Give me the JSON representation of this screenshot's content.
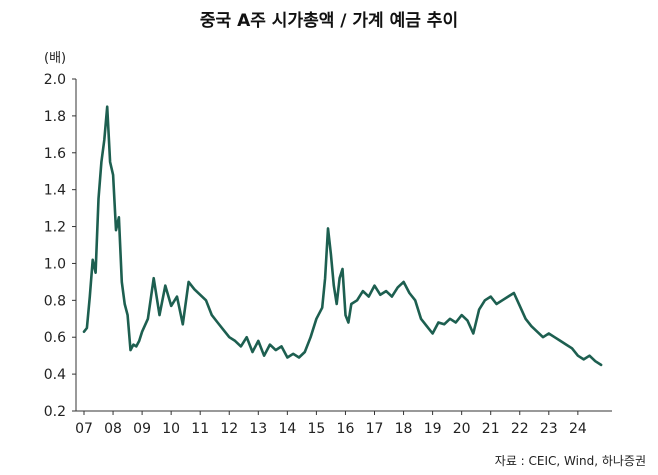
{
  "header": {
    "title": "중국 A주 시가총액 / 가계 예금 추이",
    "unit": "(배)"
  },
  "footer": {
    "source": "자료 : CEIC, Wind, 하나증권"
  },
  "chart_data": {
    "type": "line",
    "title": "중국 A주 시가총액 / 가계 예금 추이",
    "ylabel": "(배)",
    "xlabel": "",
    "ylim": [
      0.2,
      2.0
    ],
    "xlim": [
      2007.0,
      2024.9
    ],
    "yticks": [
      "2.0",
      "1.8",
      "1.6",
      "1.4",
      "1.2",
      "1.0",
      "0.8",
      "0.6",
      "0.4",
      "0.2"
    ],
    "xticks": [
      "07",
      "08",
      "09",
      "10",
      "11",
      "12",
      "13",
      "14",
      "15",
      "16",
      "17",
      "18",
      "19",
      "20",
      "21",
      "22",
      "23",
      "24"
    ],
    "grid": false,
    "line_color": "#1d5f50",
    "series": [
      {
        "x": [
          2007.0,
          2007.1,
          2007.2,
          2007.3,
          2007.4,
          2007.5,
          2007.6,
          2007.7,
          2007.8,
          2007.9,
          2008.0,
          2008.1,
          2008.2,
          2008.3,
          2008.4,
          2008.5,
          2008.6,
          2008.7,
          2008.8,
          2008.9,
          2009.0,
          2009.2,
          2009.4,
          2009.6,
          2009.8,
          2010.0,
          2010.2,
          2010.4,
          2010.6,
          2010.8,
          2011.0,
          2011.2,
          2011.4,
          2011.6,
          2011.8,
          2012.0,
          2012.2,
          2012.4,
          2012.6,
          2012.8,
          2013.0,
          2013.2,
          2013.4,
          2013.6,
          2013.8,
          2014.0,
          2014.2,
          2014.4,
          2014.6,
          2014.8,
          2015.0,
          2015.2,
          2015.3,
          2015.4,
          2015.5,
          2015.6,
          2015.7,
          2015.8,
          2015.9,
          2016.0,
          2016.1,
          2016.2,
          2016.4,
          2016.6,
          2016.8,
          2017.0,
          2017.2,
          2017.4,
          2017.6,
          2017.8,
          2018.0,
          2018.2,
          2018.4,
          2018.6,
          2018.8,
          2019.0,
          2019.2,
          2019.4,
          2019.6,
          2019.8,
          2020.0,
          2020.2,
          2020.4,
          2020.6,
          2020.8,
          2021.0,
          2021.2,
          2021.4,
          2021.6,
          2021.8,
          2022.0,
          2022.2,
          2022.4,
          2022.6,
          2022.8,
          2023.0,
          2023.2,
          2023.4,
          2023.6,
          2023.8,
          2024.0,
          2024.2,
          2024.4,
          2024.6,
          2024.8
        ],
        "values": [
          0.63,
          0.65,
          0.82,
          1.02,
          0.95,
          1.35,
          1.55,
          1.67,
          1.85,
          1.55,
          1.48,
          1.18,
          1.25,
          0.9,
          0.78,
          0.72,
          0.53,
          0.56,
          0.55,
          0.58,
          0.63,
          0.7,
          0.92,
          0.72,
          0.88,
          0.77,
          0.82,
          0.67,
          0.9,
          0.86,
          0.83,
          0.8,
          0.72,
          0.68,
          0.64,
          0.6,
          0.58,
          0.55,
          0.6,
          0.52,
          0.58,
          0.5,
          0.56,
          0.53,
          0.55,
          0.49,
          0.51,
          0.49,
          0.52,
          0.6,
          0.7,
          0.76,
          0.92,
          1.19,
          1.05,
          0.88,
          0.78,
          0.92,
          0.97,
          0.72,
          0.68,
          0.78,
          0.8,
          0.85,
          0.82,
          0.88,
          0.83,
          0.85,
          0.82,
          0.87,
          0.9,
          0.84,
          0.8,
          0.7,
          0.66,
          0.62,
          0.68,
          0.67,
          0.7,
          0.68,
          0.72,
          0.69,
          0.62,
          0.75,
          0.8,
          0.82,
          0.78,
          0.8,
          0.82,
          0.84,
          0.77,
          0.7,
          0.66,
          0.63,
          0.6,
          0.62,
          0.6,
          0.58,
          0.56,
          0.54,
          0.5,
          0.48,
          0.5,
          0.47,
          0.45
        ]
      }
    ]
  }
}
